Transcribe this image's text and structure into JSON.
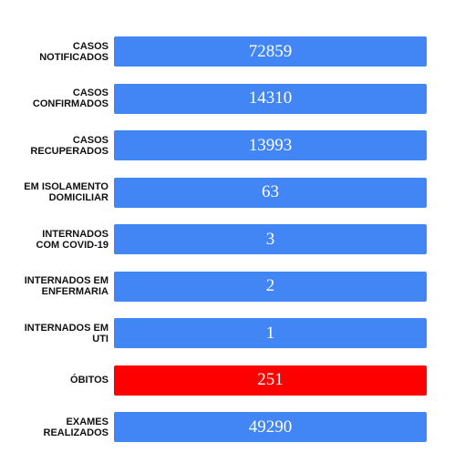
{
  "colors": {
    "bar_default": "#4285f4",
    "bar_alert": "#ff0000"
  },
  "stats": [
    {
      "label": "CASOS\nNOTIFICADOS",
      "value": "72859",
      "color": "#4285f4"
    },
    {
      "label": "CASOS\nCONFIRMADOS",
      "value": "14310",
      "color": "#4285f4"
    },
    {
      "label": "CASOS\nRECUPERADOS",
      "value": "13993",
      "color": "#4285f4"
    },
    {
      "label": "EM ISOLAMENTO\nDOMICILIAR",
      "value": "63",
      "color": "#4285f4"
    },
    {
      "label": "INTERNADOS\nCOM COVID-19",
      "value": "3",
      "color": "#4285f4"
    },
    {
      "label": "INTERNADOS EM\nENFERMARIA",
      "value": "2",
      "color": "#4285f4"
    },
    {
      "label": "INTERNADOS EM\nUTI",
      "value": "1",
      "color": "#4285f4"
    },
    {
      "label": "ÓBITOS",
      "value": "251",
      "color": "#ff0000"
    },
    {
      "label": "EXAMES\nREALIZADOS",
      "value": "49290",
      "color": "#4285f4"
    }
  ]
}
